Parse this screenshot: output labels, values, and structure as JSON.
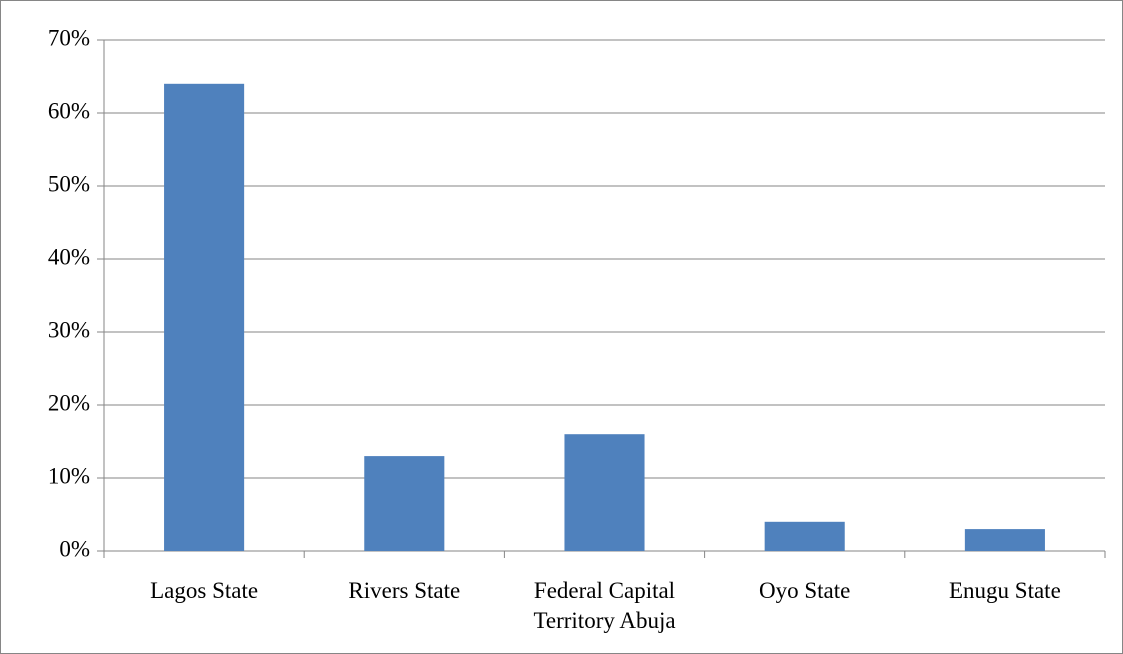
{
  "chart_data": {
    "type": "bar",
    "categories": [
      "Lagos State",
      "Rivers State",
      "Federal Capital Territory Abuja",
      "Oyo State",
      "Enugu State"
    ],
    "values": [
      64,
      13,
      16,
      4,
      3
    ],
    "color": "#4f81bd",
    "ylim": [
      0,
      70
    ],
    "yticks": [
      {
        "value": 0,
        "label": "0%"
      },
      {
        "value": 10,
        "label": "10%"
      },
      {
        "value": 20,
        "label": "20%"
      },
      {
        "value": 30,
        "label": "30%"
      },
      {
        "value": 40,
        "label": "40%"
      },
      {
        "value": 50,
        "label": "50%"
      },
      {
        "value": 60,
        "label": "60%"
      },
      {
        "value": 70,
        "label": "70%"
      }
    ],
    "grid": true
  }
}
